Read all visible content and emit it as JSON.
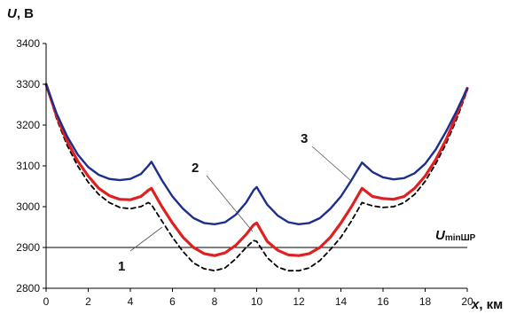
{
  "chart_data": {
    "type": "line",
    "xlabel_var": "x",
    "xlabel_unit": ", км",
    "ylabel_var": "U",
    "ylabel_unit": ", В",
    "xlim": [
      0,
      20
    ],
    "ylim": [
      2800,
      3400
    ],
    "xticks": [
      0,
      2,
      4,
      6,
      8,
      10,
      12,
      14,
      16,
      18,
      20
    ],
    "yticks": [
      2800,
      2900,
      3000,
      3100,
      3200,
      3300,
      3400
    ],
    "grid": false,
    "legend": "none",
    "reference_line": {
      "y": 2900,
      "label_main": "U",
      "label_sub": "minШР",
      "color": "#000000"
    },
    "series": [
      {
        "id": "1",
        "name": "1",
        "color": "#000000",
        "style": "dashed",
        "x": [
          0,
          0.5,
          1,
          1.5,
          2,
          2.5,
          3,
          3.5,
          4,
          4.5,
          4.85,
          5,
          5.5,
          6,
          6.5,
          7,
          7.5,
          8,
          8.5,
          9,
          9.5,
          9.85,
          10,
          10.5,
          11,
          11.5,
          12,
          12.5,
          13,
          13.5,
          14,
          14.5,
          15,
          15.5,
          16,
          16.5,
          17,
          17.5,
          18,
          18.5,
          19,
          19.5,
          20
        ],
        "values": [
          3300,
          3215,
          3150,
          3100,
          3060,
          3030,
          3010,
          2998,
          2995,
          3000,
          3010,
          3005,
          2965,
          2925,
          2890,
          2862,
          2848,
          2843,
          2850,
          2872,
          2900,
          2917,
          2915,
          2875,
          2852,
          2843,
          2843,
          2850,
          2868,
          2895,
          2925,
          2965,
          3010,
          3002,
          2998,
          3000,
          3010,
          3030,
          3062,
          3105,
          3155,
          3215,
          3285
        ]
      },
      {
        "id": "2",
        "name": "2",
        "color": "#e02020",
        "style": "solid",
        "x": [
          0,
          0.5,
          1,
          1.5,
          2,
          2.5,
          3,
          3.5,
          4,
          4.5,
          4.85,
          5,
          5.5,
          6,
          6.5,
          7,
          7.5,
          8,
          8.5,
          9,
          9.5,
          9.85,
          10,
          10.5,
          11,
          11.5,
          12,
          12.5,
          13,
          13.5,
          14,
          14.5,
          15,
          15.5,
          16,
          16.5,
          17,
          17.5,
          18,
          18.5,
          19,
          19.5,
          20
        ],
        "values": [
          3300,
          3222,
          3160,
          3112,
          3075,
          3045,
          3027,
          3018,
          3017,
          3025,
          3040,
          3045,
          3000,
          2960,
          2925,
          2900,
          2885,
          2880,
          2887,
          2905,
          2932,
          2955,
          2960,
          2915,
          2893,
          2882,
          2880,
          2885,
          2900,
          2925,
          2960,
          3000,
          3045,
          3025,
          3020,
          3018,
          3025,
          3045,
          3075,
          3115,
          3165,
          3225,
          3290
        ]
      },
      {
        "id": "3",
        "name": "3",
        "color": "#1c2f8c",
        "style": "solid",
        "x": [
          0,
          0.5,
          1,
          1.5,
          2,
          2.5,
          3,
          3.5,
          4,
          4.5,
          4.85,
          5,
          5.5,
          6,
          6.5,
          7,
          7.5,
          8,
          8.5,
          9,
          9.5,
          9.85,
          10,
          10.5,
          11,
          11.5,
          12,
          12.5,
          13,
          13.5,
          14,
          14.5,
          15,
          15.5,
          16,
          16.5,
          17,
          17.5,
          18,
          18.5,
          19,
          19.5,
          20
        ],
        "values": [
          3300,
          3228,
          3172,
          3128,
          3097,
          3078,
          3068,
          3065,
          3068,
          3080,
          3100,
          3110,
          3065,
          3025,
          2995,
          2972,
          2960,
          2957,
          2962,
          2980,
          3010,
          3040,
          3048,
          3005,
          2978,
          2962,
          2957,
          2960,
          2972,
          2995,
          3025,
          3065,
          3108,
          3085,
          3072,
          3067,
          3070,
          3082,
          3105,
          3140,
          3185,
          3235,
          3290
        ]
      }
    ]
  }
}
